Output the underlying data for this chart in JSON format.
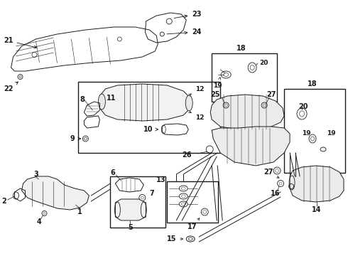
{
  "background": "#ffffff",
  "line_color": "#1a1a1a",
  "lw": 0.7,
  "fontsize_label": 7.0,
  "fontsize_small": 6.0
}
